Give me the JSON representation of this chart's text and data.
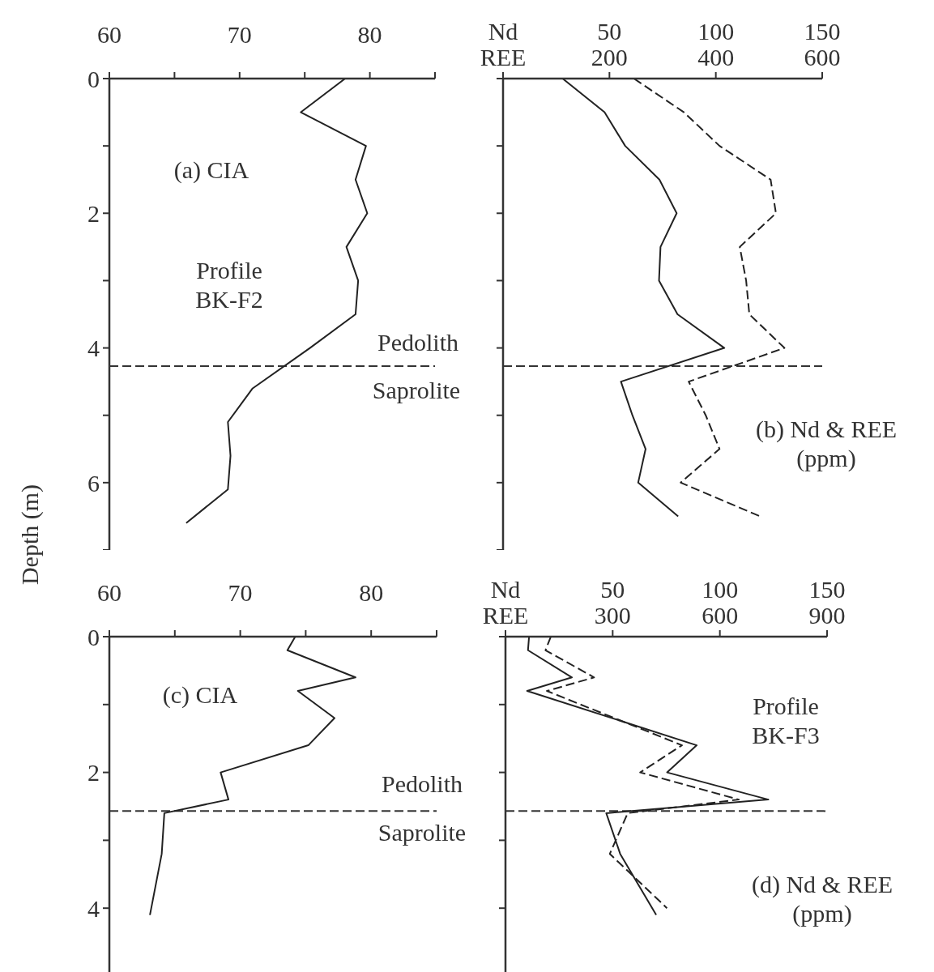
{
  "chart_data": [
    {
      "type": "line",
      "xlim": [
        60,
        85
      ],
      "xticks": [
        60,
        {
          "value": 65,
          "label": null
        },
        70,
        {
          "value": 75,
          "label": null
        },
        80,
        {
          "value": 85,
          "label": null
        }
      ],
      "ylim": [
        7,
        0
      ],
      "yticks": [
        0,
        {
          "value": 1,
          "label": null
        },
        2,
        {
          "value": 3,
          "label": null
        },
        4,
        {
          "value": 5,
          "label": null
        },
        6,
        {
          "value": 7,
          "label": null
        }
      ],
      "ylabel": "Depth (m)",
      "ref_lines": [
        {
          "axis": "y",
          "value": 4.27,
          "line_style": "dashed"
        }
      ],
      "annotations": [
        "(a) CIA",
        "Profile BK-F2",
        "Pedolith",
        "Saprolite"
      ],
      "series": [
        {
          "color": "#222222",
          "x": [
            78.1,
            74.7,
            79.7,
            78.9,
            79.8,
            78.2,
            79.1,
            78.9,
            75.4,
            71.0,
            69.1,
            69.3,
            69.1,
            65.9
          ],
          "values": [
            0,
            0.5,
            1.0,
            1.5,
            2.0,
            2.5,
            3.0,
            3.5,
            4.0,
            4.6,
            5.1,
            5.6,
            6.1,
            6.6
          ]
        }
      ]
    },
    {
      "type": "line",
      "xlim": [
        0,
        150
      ],
      "xticks": [
        {
          "value": 0,
          "label": "Nd"
        },
        50,
        100,
        150
      ],
      "x2lim": [
        0,
        600
      ],
      "x2ticks": [
        {
          "value": 0,
          "label": "REE"
        },
        200,
        400,
        600
      ],
      "ylim": [
        7,
        0
      ],
      "yticks": [
        {
          "value": 0,
          "label": null
        },
        {
          "value": 1,
          "label": null
        },
        {
          "value": 2,
          "label": null
        },
        {
          "value": 3,
          "label": null
        },
        {
          "value": 4,
          "label": null
        },
        {
          "value": 5,
          "label": null
        },
        {
          "value": 6,
          "label": null
        },
        {
          "value": 7,
          "label": null
        }
      ],
      "tick_labels": "x",
      "ref_lines": [
        {
          "axis": "y",
          "value": 4.27,
          "line_style": "dashed"
        }
      ],
      "annotations": [
        "(b) Nd & REE (ppm)"
      ],
      "series": [
        {
          "color": "#222222",
          "x": [
            28.0,
            47.7,
            57.4,
            73.5,
            81.6,
            74.0,
            73.3,
            82.0,
            104.0,
            55.4,
            60.8,
            67.0,
            63.5,
            82.3
          ],
          "values": [
            0,
            0.5,
            1.0,
            1.5,
            2.0,
            2.5,
            3.0,
            3.5,
            4.0,
            4.5,
            5.0,
            5.5,
            6.0,
            6.5
          ]
        },
        {
          "color": "#222222",
          "axis": "x2",
          "line_style": "dashed",
          "x": [
            246,
            340,
            407,
            503,
            513,
            445,
            457,
            463,
            529,
            349,
            381,
            407,
            334,
            483
          ],
          "values": [
            0,
            0.5,
            1.0,
            1.5,
            2.0,
            2.5,
            3.0,
            3.5,
            4.0,
            4.5,
            5.0,
            5.5,
            6.0,
            6.5
          ]
        }
      ]
    },
    {
      "type": "line",
      "xlim": [
        60,
        85
      ],
      "xticks": [
        60,
        {
          "value": 65,
          "label": null
        },
        70,
        {
          "value": 75,
          "label": null
        },
        80,
        {
          "value": 85,
          "label": null
        }
      ],
      "ylim": [
        5,
        0
      ],
      "yticks": [
        0,
        {
          "value": 1,
          "label": null
        },
        2,
        {
          "value": 3,
          "label": null
        },
        4
      ],
      "ref_lines": [
        {
          "axis": "y",
          "value": 2.57,
          "line_style": "dashed"
        }
      ],
      "annotations": [
        "(c) CIA",
        "Pedolith",
        "Saprolite"
      ],
      "series": [
        {
          "color": "#222222",
          "x": [
            74.2,
            73.6,
            78.8,
            74.4,
            77.2,
            75.2,
            68.5,
            69.1,
            64.2,
            64.0,
            63.1
          ],
          "values": [
            0,
            0.2,
            0.6,
            0.8,
            1.2,
            1.6,
            2.0,
            2.4,
            2.6,
            3.2,
            4.1
          ]
        }
      ]
    },
    {
      "type": "line",
      "xlim": [
        0,
        150
      ],
      "xticks": [
        {
          "value": 0,
          "label": "Nd"
        },
        50,
        100,
        150
      ],
      "x2lim": [
        0,
        900
      ],
      "x2ticks": [
        {
          "value": 0,
          "label": "REE"
        },
        300,
        600,
        900
      ],
      "ylim": [
        5,
        0
      ],
      "yticks": [
        {
          "value": 0,
          "label": null
        },
        {
          "value": 1,
          "label": null
        },
        {
          "value": 2,
          "label": null
        },
        {
          "value": 3,
          "label": null
        },
        {
          "value": 4,
          "label": null
        }
      ],
      "tick_labels": "x",
      "ref_lines": [
        {
          "axis": "y",
          "value": 2.57,
          "line_style": "dashed"
        }
      ],
      "annotations": [
        "Profile BK-F3",
        "(d) Nd & REE (ppm)"
      ],
      "series": [
        {
          "color": "#222222",
          "x": [
            11.0,
            10.5,
            31.0,
            10.1,
            89.2,
            75.4,
            122.6,
            47.0,
            53.5,
            70.3
          ],
          "values": [
            0,
            0.2,
            0.6,
            0.8,
            1.6,
            2.0,
            2.4,
            2.6,
            3.2,
            4.1
          ]
        },
        {
          "color": "#222222",
          "axis": "x2",
          "line_style": "dashed",
          "x": [
            127,
            112,
            248,
            116,
            494,
            377,
            653,
            342,
            292,
            452
          ],
          "values": [
            0,
            0.2,
            0.6,
            0.8,
            1.6,
            2.0,
            2.4,
            2.6,
            3.2,
            4.0
          ]
        }
      ]
    }
  ]
}
